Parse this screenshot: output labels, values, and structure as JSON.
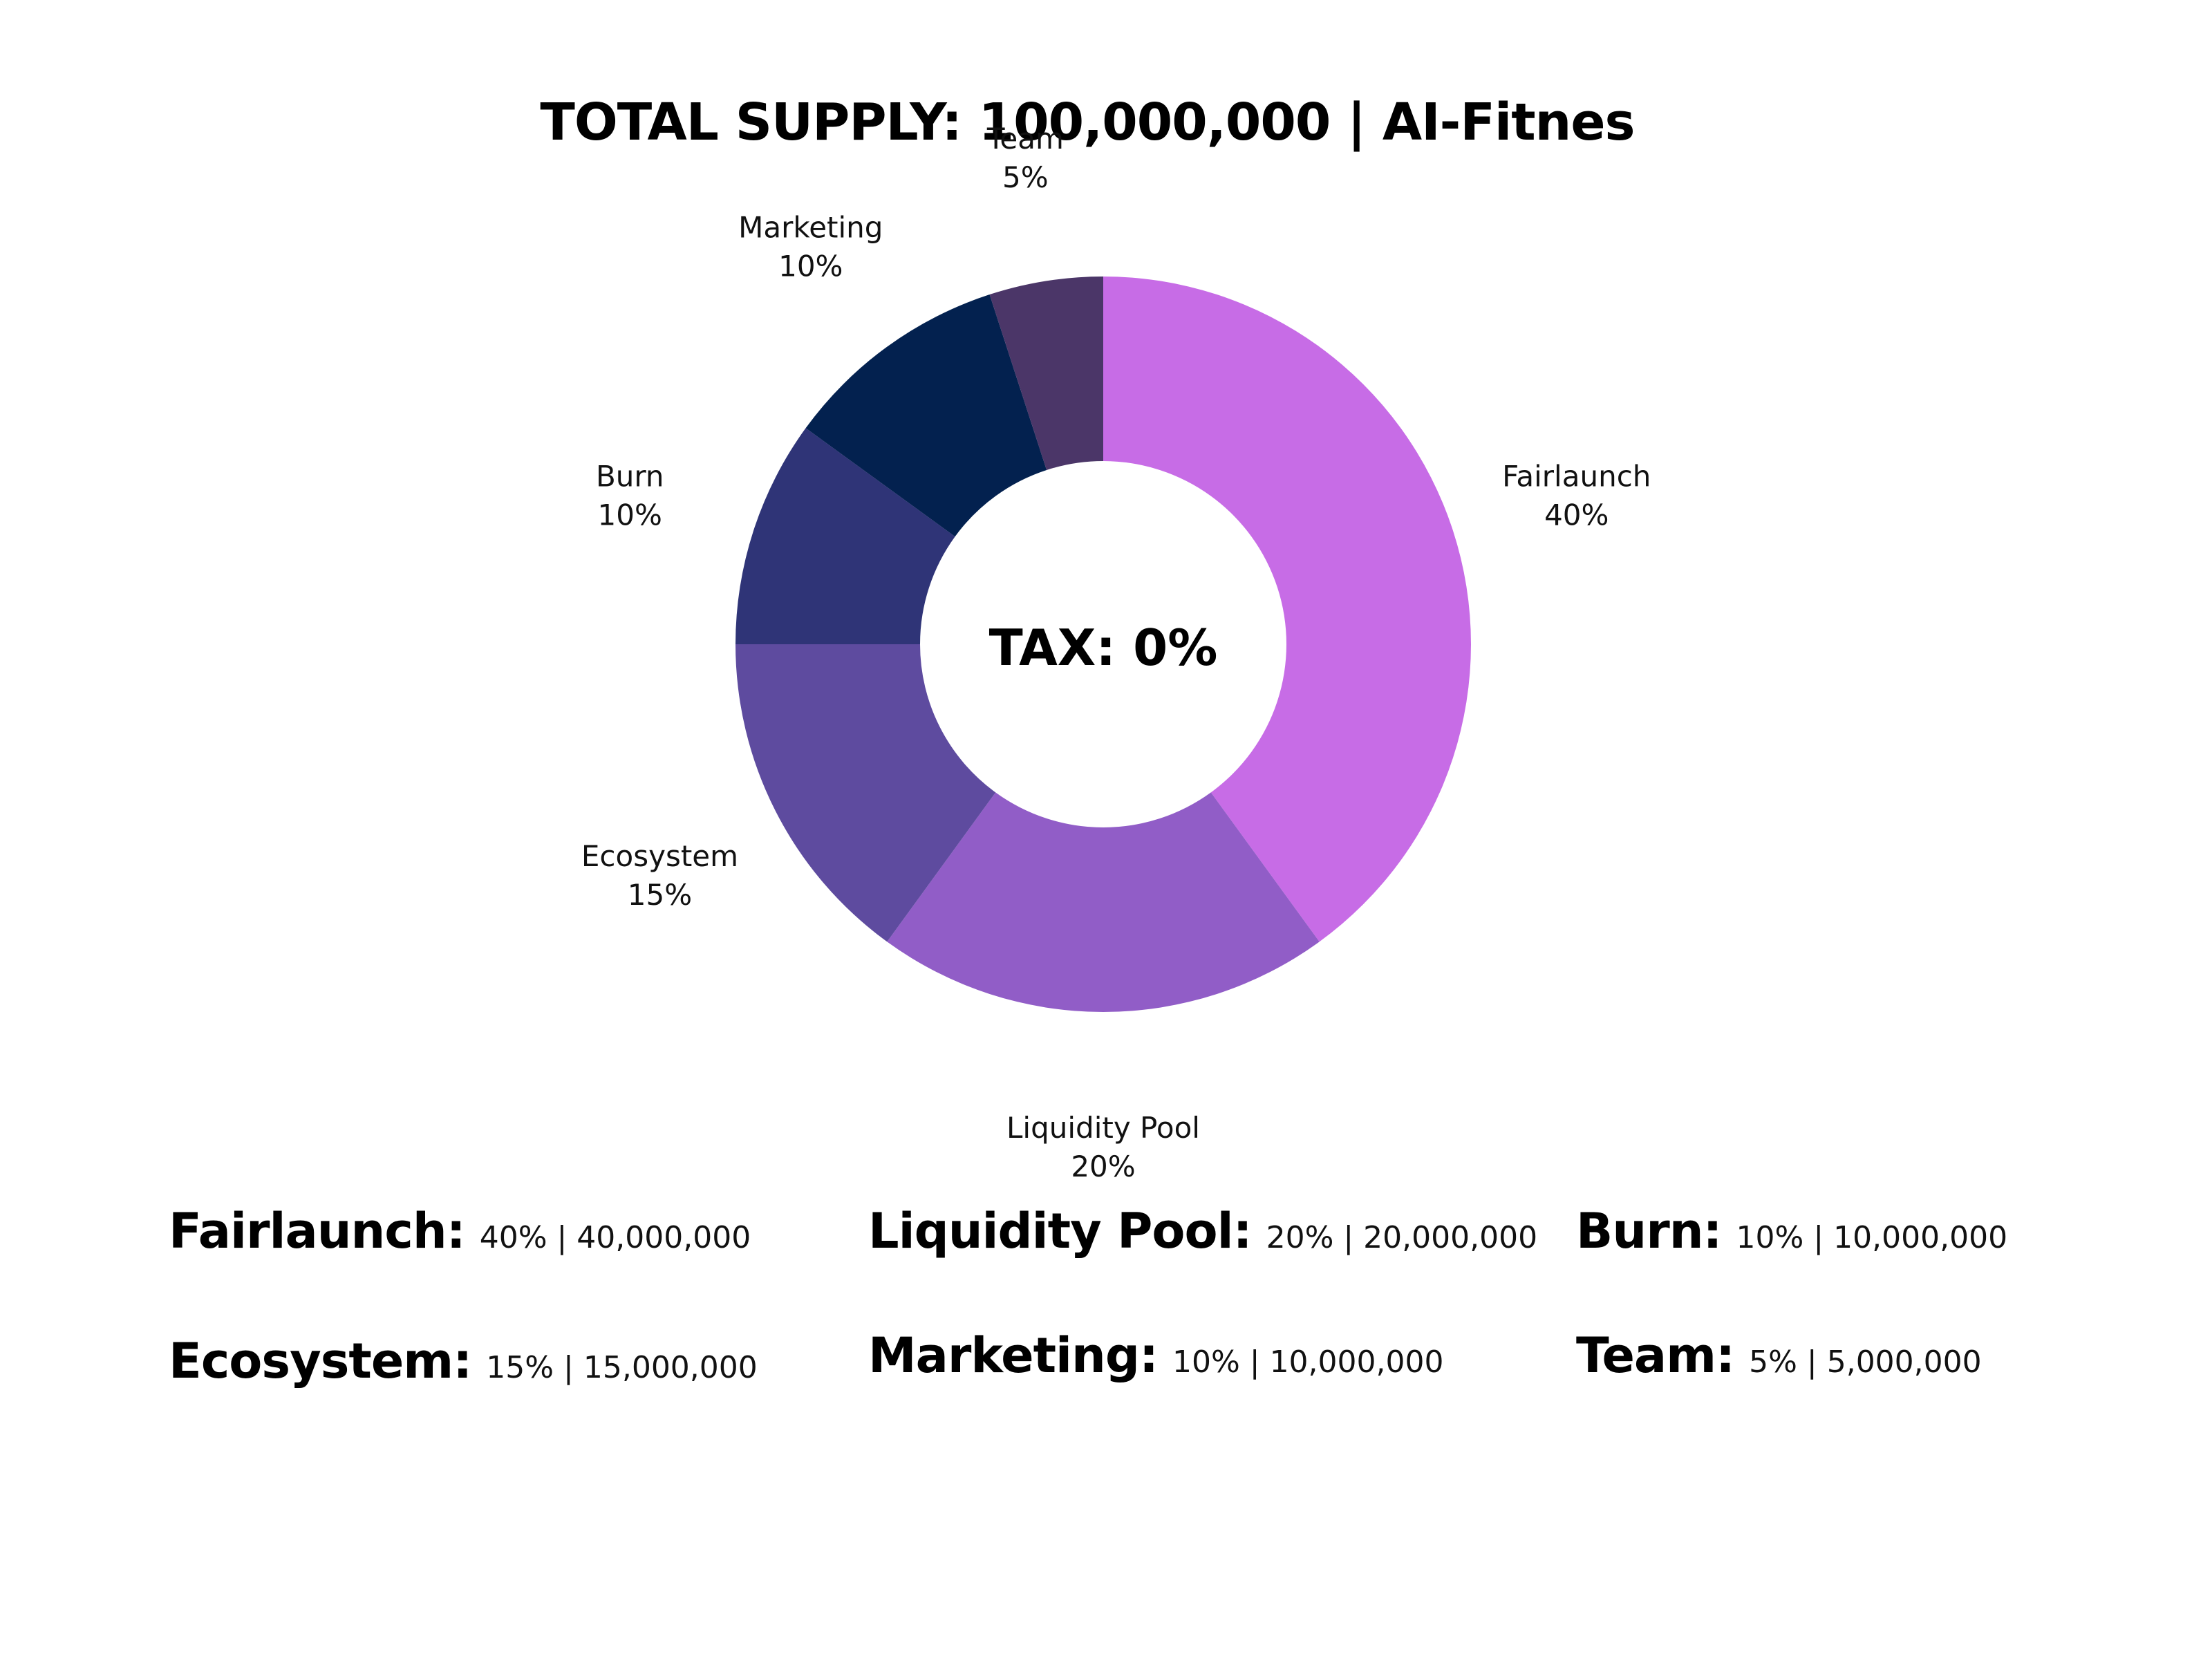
{
  "chart_data": {
    "type": "pie",
    "title": "TOTAL SUPPLY: 100,000,000 | AI-Fitnes",
    "center_text": "TAX: 0%",
    "donut": true,
    "slices": [
      {
        "label": "Fairlaunch",
        "value": 40,
        "value_label": "40%",
        "color": "#c76ce6"
      },
      {
        "label": "Liquidity Pool",
        "value": 20,
        "value_label": "20%",
        "color": "#915dc7"
      },
      {
        "label": "Ecosystem",
        "value": 15,
        "value_label": "15%",
        "color": "#5e4b9f"
      },
      {
        "label": "Burn",
        "value": 10,
        "value_label": "10%",
        "color": "#2f3477"
      },
      {
        "label": "Marketing",
        "value": 10,
        "value_label": "10%",
        "color": "#03214f"
      },
      {
        "label": "Team",
        "value": 5,
        "value_label": "5%",
        "color": "#4b3668"
      }
    ]
  },
  "legend": [
    {
      "name": "Fairlaunch",
      "value": "40% | 40,000,000"
    },
    {
      "name": "Liquidity Pool",
      "value": "20% | 20,000,000"
    },
    {
      "name": "Burn",
      "value": "10% | 10,000,000"
    },
    {
      "name": "Ecosystem",
      "value": "15% | 15,000,000"
    },
    {
      "name": "Marketing",
      "value": "10% | 10,000,000"
    },
    {
      "name": "Team",
      "value": "5% | 5,000,000"
    }
  ]
}
